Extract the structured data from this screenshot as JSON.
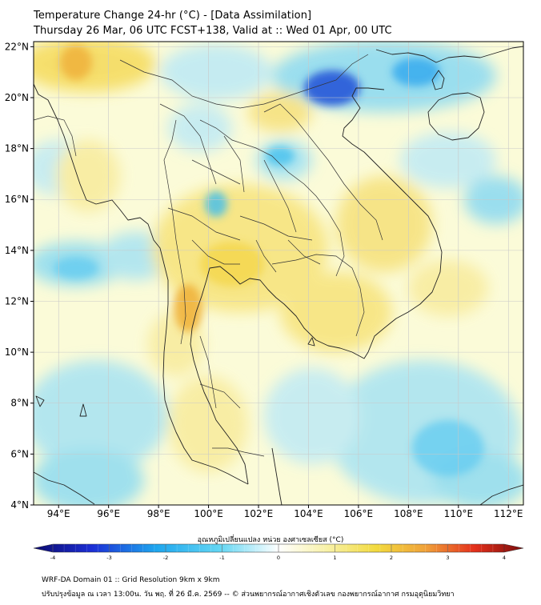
{
  "title": {
    "line1": "Temperature Change 24-hr (°C) - [Data Assimilation]",
    "line2": "Thursday 26 Mar, 06 UTC FCST+138, Valid at :: Wed 01 Apr, 00 UTC"
  },
  "map": {
    "lon_range": [
      93,
      112.6
    ],
    "lat_range": [
      4,
      22.2
    ],
    "lat_ticks": [
      {
        "value": 22,
        "label": "22°N"
      },
      {
        "value": 20,
        "label": "20°N"
      },
      {
        "value": 18,
        "label": "18°N"
      },
      {
        "value": 16,
        "label": "16°N"
      },
      {
        "value": 14,
        "label": "14°N"
      },
      {
        "value": 12,
        "label": "12°N"
      },
      {
        "value": 10,
        "label": "10°N"
      },
      {
        "value": 8,
        "label": "8°N"
      },
      {
        "value": 6,
        "label": "6°N"
      },
      {
        "value": 4,
        "label": "4°N"
      }
    ],
    "lon_ticks": [
      {
        "value": 94,
        "label": "94°E"
      },
      {
        "value": 96,
        "label": "96°E"
      },
      {
        "value": 98,
        "label": "98°E"
      },
      {
        "value": 100,
        "label": "100°E"
      },
      {
        "value": 102,
        "label": "102°E"
      },
      {
        "value": 104,
        "label": "104°E"
      },
      {
        "value": 106,
        "label": "106°E"
      },
      {
        "value": 108,
        "label": "108°E"
      },
      {
        "value": 110,
        "label": "110°E"
      },
      {
        "value": 112,
        "label": "112°E"
      }
    ]
  },
  "colorbar": {
    "label": "อุณหภูมิเปลี่ยนแปลง หน่วย องศาเซลเซียส (°C)",
    "min": -4,
    "max": 4,
    "ticks": [
      {
        "value": -4,
        "label": "-4"
      },
      {
        "value": -3,
        "label": "-3"
      },
      {
        "value": -2,
        "label": "-2"
      },
      {
        "value": -1,
        "label": "-1"
      },
      {
        "value": 0,
        "label": "0"
      },
      {
        "value": 1,
        "label": "1"
      },
      {
        "value": 2,
        "label": "2"
      },
      {
        "value": 3,
        "label": "3"
      },
      {
        "value": 4,
        "label": "4"
      }
    ]
  },
  "footer": {
    "line1": "WRF-DA Domain 01 :: Grid Resolution 9km x 9km",
    "line2": "ปรับปรุงข้อมูล ณ เวลา 13:00น. วัน พฤ. ที่ 26 มี.ค. 2569 -- © ส่วนพยากรณ์อากาศเชิงตัวเลข กองพยากรณ์อากาศ กรมอุตุนิยมวิทยา"
  },
  "colors": {
    "background_field": "#fbfbd8",
    "warm": "#f5d94a",
    "warm_strong": "#f1b43a",
    "cool": "#6fd3ef",
    "cool_strong": "#1d5ad8",
    "coastline": "#222222"
  }
}
